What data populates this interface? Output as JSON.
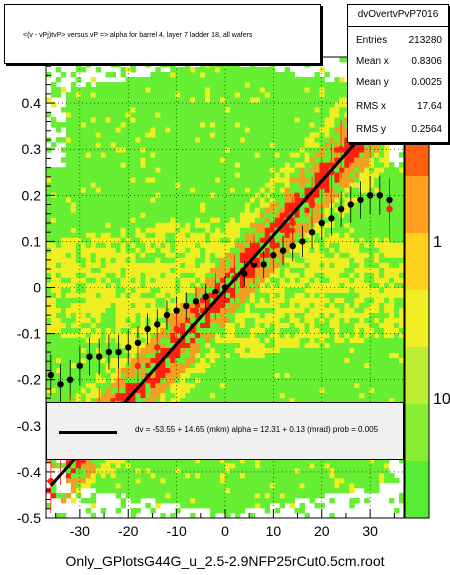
{
  "chart_data": {
    "type": "heatmap",
    "title": "<(v - vPj)tvP> versus   vP => alpha for barrel 4, layer 7 ladder 18, all wafers",
    "xlim": [
      -37,
      37
    ],
    "ylim": [
      -0.5,
      0.5
    ],
    "x_ticks": [
      "-30",
      "-20",
      "-10",
      "0",
      "10",
      "20",
      "30"
    ],
    "x_tick_values": [
      -30,
      -20,
      -10,
      0,
      10,
      20,
      30
    ],
    "y_ticks": [
      "-0.5",
      "-0.4",
      "-0.3",
      "-0.2",
      "-0.1",
      "0",
      "0.1",
      "0.2",
      "0.3",
      "0.4"
    ],
    "y_tick_values": [
      -0.5,
      -0.4,
      -0.3,
      -0.2,
      -0.1,
      0,
      0.1,
      0.2,
      0.3,
      0.4
    ],
    "grid": true,
    "colorbar_labels": [
      "1",
      "10"
    ],
    "colorbar_fragment": "0",
    "fit_line": {
      "x": [
        -36,
        36
      ],
      "y": [
        -0.43,
        0.42
      ]
    },
    "series": [
      {
        "marker": "black",
        "x": [
          -36,
          -34,
          -32,
          -30,
          -28,
          -26,
          -24,
          -22,
          -20,
          -18,
          -16,
          -14,
          -12,
          -10,
          -8,
          -6,
          -4,
          -2,
          0,
          2,
          4,
          6,
          8,
          10,
          12,
          14,
          16,
          18,
          20,
          22,
          24,
          26,
          28,
          30,
          32,
          34
        ],
        "y": [
          -0.19,
          -0.21,
          -0.2,
          -0.17,
          -0.15,
          -0.15,
          -0.14,
          -0.14,
          -0.13,
          -0.12,
          -0.09,
          -0.08,
          -0.06,
          -0.05,
          -0.04,
          -0.03,
          -0.02,
          -0.01,
          0.0,
          0.02,
          0.03,
          0.05,
          0.05,
          0.07,
          0.08,
          0.09,
          0.1,
          0.12,
          0.14,
          0.15,
          0.17,
          0.18,
          0.19,
          0.2,
          0.2,
          0.19
        ]
      },
      {
        "marker": "red",
        "x": [
          -36,
          -34,
          -32,
          -30,
          -26,
          -22,
          -18,
          -14,
          -10,
          -6,
          -2,
          2,
          6,
          10,
          14,
          18,
          20,
          22,
          24,
          26,
          28,
          30,
          32,
          34
        ],
        "y": [
          -0.42,
          -0.36,
          -0.3,
          -0.33,
          -0.28,
          -0.24,
          -0.17,
          -0.13,
          -0.09,
          -0.05,
          -0.02,
          0.02,
          0.06,
          0.09,
          0.14,
          0.18,
          0.22,
          0.25,
          0.3,
          0.33,
          0.38,
          0.35,
          0.43,
          0.17
        ]
      }
    ]
  },
  "stats": {
    "name": "dvOvertvPvP7016",
    "rows": [
      {
        "key": "Entries",
        "value": "213280"
      },
      {
        "key": "Mean x",
        "value": "0.8306"
      },
      {
        "key": "Mean y",
        "value": "0.0025"
      },
      {
        "key": "RMS x",
        "value": "17.64"
      },
      {
        "key": "RMS y",
        "value": "0.2564"
      }
    ]
  },
  "legend": {
    "text": "dv =  -53.55 +  14.65 (mkm) alpha =    12.31 +   0.13 (mrad) prob = 0.005"
  },
  "footer": "Only_GPlotsG44G_u_2.5-2.9NFP25rCut0.5cm.root",
  "colors": {
    "background_green": "#66ee33",
    "yellow": "#eeee22",
    "orange": "#f0a020",
    "red": "#ff2010",
    "black": "#000000"
  }
}
